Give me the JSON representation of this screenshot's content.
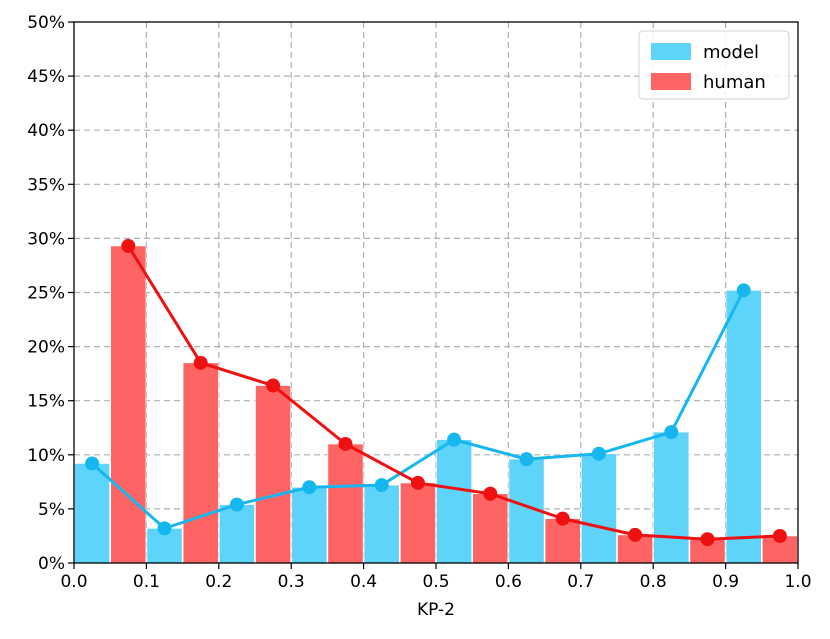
{
  "chart_data": {
    "type": "bar",
    "xlabel": "KP-2",
    "ylabel": "",
    "xlim": [
      0.0,
      1.0
    ],
    "ylim": [
      0,
      50
    ],
    "xticks": [
      "0.0",
      "0.1",
      "0.2",
      "0.3",
      "0.4",
      "0.5",
      "0.6",
      "0.7",
      "0.8",
      "0.9",
      "1.0"
    ],
    "yticks": [
      "0%",
      "5%",
      "10%",
      "15%",
      "20%",
      "25%",
      "30%",
      "35%",
      "40%",
      "45%",
      "50%"
    ],
    "grid": true,
    "legend_position": "top-right",
    "bin_width": 0.1,
    "bins": [
      0.0,
      0.1,
      0.2,
      0.3,
      0.4,
      0.5,
      0.6,
      0.7,
      0.8,
      0.9
    ],
    "series": [
      {
        "name": "model",
        "color": "#5fd4fb",
        "line_color": "#16b6ee",
        "x": [
          0.025,
          0.125,
          0.225,
          0.325,
          0.425,
          0.525,
          0.625,
          0.725,
          0.825,
          0.925
        ],
        "values": [
          9.2,
          3.2,
          5.4,
          7.0,
          7.2,
          11.4,
          9.6,
          10.1,
          12.1,
          25.2
        ]
      },
      {
        "name": "human",
        "color": "#ff6464",
        "line_color": "#ee1111",
        "x": [
          0.075,
          0.175,
          0.275,
          0.375,
          0.475,
          0.575,
          0.675,
          0.775,
          0.875,
          0.975
        ],
        "values": [
          29.3,
          18.5,
          16.4,
          11.0,
          7.4,
          6.4,
          4.1,
          2.6,
          2.2,
          2.5
        ]
      }
    ]
  }
}
